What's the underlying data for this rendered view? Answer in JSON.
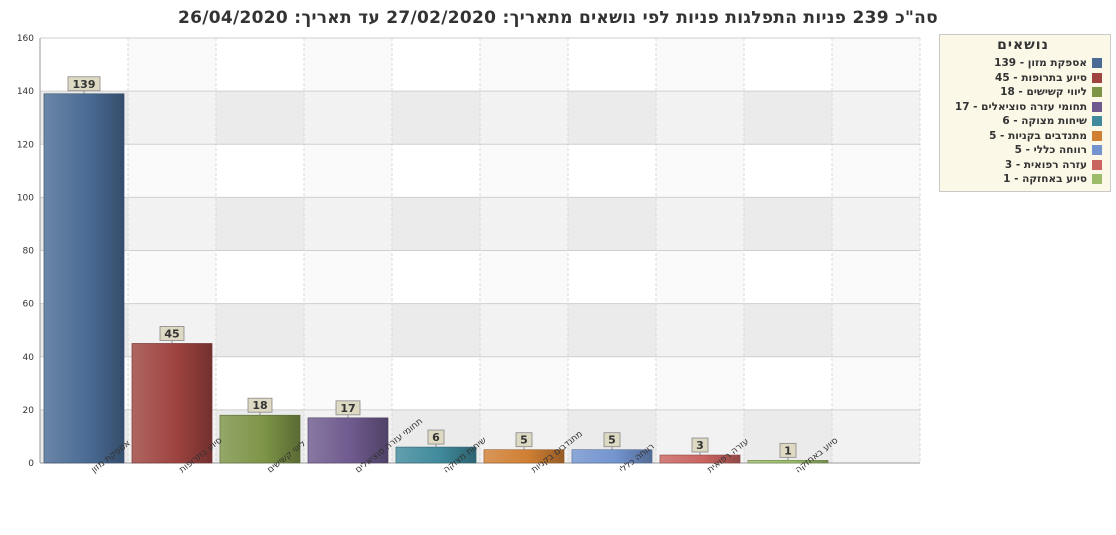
{
  "chart_data": {
    "type": "bar",
    "title": "סה\"כ 239 פניות  התפלגות פניות לפי נושאים מתאריך: 27/02/2020  עד תאריך: 26/04/2020",
    "categories": [
      "אספקת מזון",
      "סיוע בתרופות",
      "ליווי קשישים",
      "תחומי עזרה סוציאלים",
      "שיחות מצוקה",
      "מתנדבים בקניות",
      "רווחה כללי",
      "עזרה רפואית",
      "סיוע באחזקה"
    ],
    "values": [
      139,
      45,
      18,
      17,
      6,
      5,
      5,
      3,
      1
    ],
    "colors": [
      "#4a6b94",
      "#9e4340",
      "#7d9447",
      "#6e5a8e",
      "#3f8a9c",
      "#d07f33",
      "#7394cf",
      "#c96460",
      "#9cbc6a"
    ],
    "ylim": [
      0,
      160
    ],
    "yticks": [
      0,
      20,
      40,
      60,
      80,
      100,
      120,
      140,
      160
    ],
    "grid": true,
    "legend": {
      "title": "נושאים",
      "position": "right",
      "entries": [
        "אספקת מזון - 139",
        "סיוע בתרופות - 45",
        "ליווי קשישים - 18",
        "תחומי עזרה סוציאלים - 17",
        "שיחות מצוקה - 6",
        "מתנדבים בקניות - 5",
        "רווחה כללי - 5",
        "עזרה רפואית - 3",
        "סיוע באחזקה - 1"
      ]
    }
  }
}
